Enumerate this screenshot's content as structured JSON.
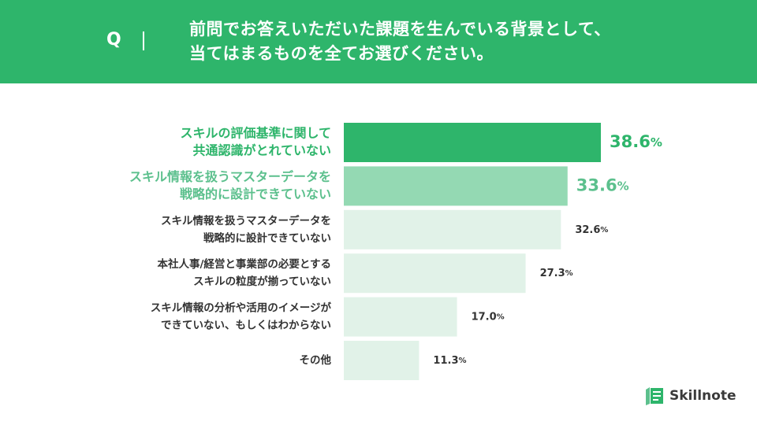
{
  "header": {
    "q_mark": "Q",
    "question_lines": [
      "前問でお答えいただいた課題を生んでいる背景として、",
      "当てはまるものを全てお選びください。"
    ]
  },
  "colors": {
    "header_bg": "#2eb56b",
    "primary": "#2eb56b",
    "secondary": "#94d9b3",
    "tertiary": "#e1f2e8",
    "primary_text": "#2eb56b",
    "secondary_text": "#5cc08d",
    "default_text": "#333333"
  },
  "chart_data": {
    "type": "bar",
    "orientation": "horizontal",
    "categories": [
      [
        "スキルの評価基準に関して",
        "共通認識がとれていない"
      ],
      [
        "スキル情報を扱うマスターデータを",
        "戦略的に設計できていない"
      ],
      [
        "スキル情報を扱うマスターデータを",
        "戦略的に設計できていない"
      ],
      [
        "本社人事/経営と事業部の必要とする",
        "スキルの粒度が揃っていない"
      ],
      [
        "スキル情報の分析や活用のイメージが",
        "できていない、もしくはわからない"
      ],
      [
        "その他"
      ]
    ],
    "values": [
      38.6,
      33.6,
      32.6,
      27.3,
      17.0,
      11.3
    ],
    "value_labels": [
      "38.6",
      "33.6",
      "32.6",
      "27.3",
      "17.0",
      "11.3"
    ],
    "unit": "%",
    "highlight": [
      "primary",
      "secondary",
      "tertiary",
      "tertiary",
      "tertiary",
      "tertiary"
    ],
    "xlim": [
      0,
      38.6
    ],
    "grid": false,
    "legend": "none"
  },
  "logo": {
    "text": "Skillnote",
    "icon": "skillnote-logo-icon"
  }
}
